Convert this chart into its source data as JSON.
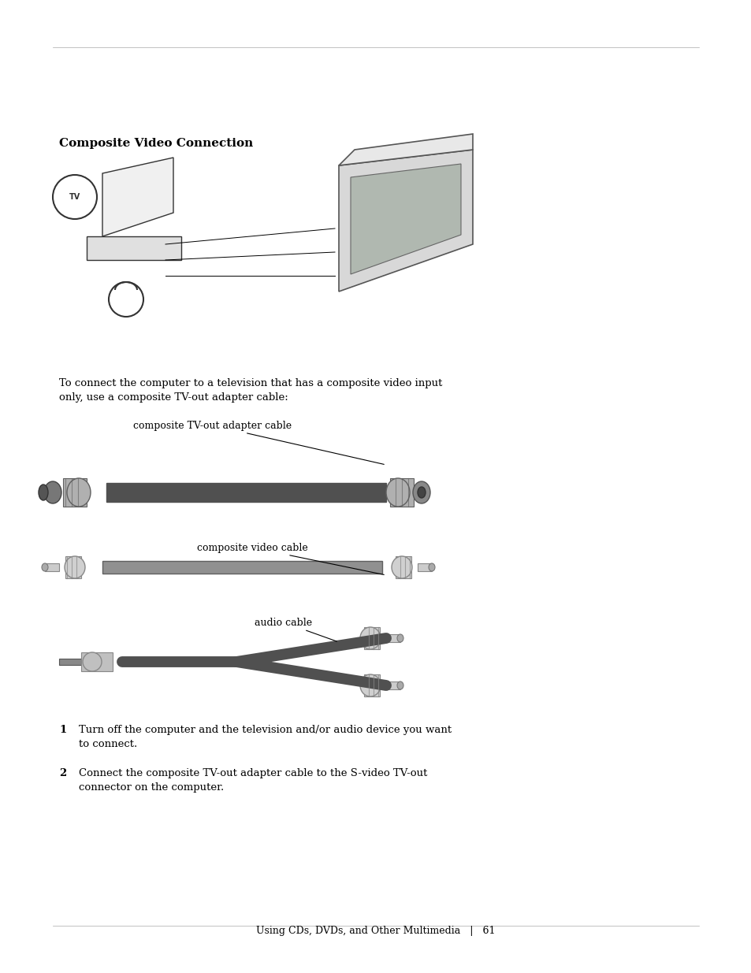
{
  "title": "Composite Video Connection",
  "title_fontsize": 11,
  "title_bold": true,
  "body_text": "To connect the computer to a television that has a composite video input\nonly, use a composite TV-out adapter cable:",
  "body_fontsize": 9.5,
  "label_cable1": "composite TV-out adapter cable",
  "label_cable2": "composite video cable",
  "label_cable3": "audio cable",
  "label_fontsize": 9,
  "step1_num": "1",
  "step1_text": "Turn off the computer and the television and/or audio device you want\nto connect.",
  "step2_num": "2",
  "step2_text": "Connect the composite TV-out adapter cable to the S-video TV-out\nconnector on the computer.",
  "step_fontsize": 9.5,
  "footer_text": "Using CDs, DVDs, and Other Multimedia   |   61",
  "footer_fontsize": 9,
  "background_color": "#ffffff",
  "text_color": "#000000",
  "cable_color": "#808080",
  "cable_dark": "#505050",
  "connector_color": "#a0a0a0",
  "connector_dark": "#606060",
  "white_cable_color": "#d0d0d0"
}
